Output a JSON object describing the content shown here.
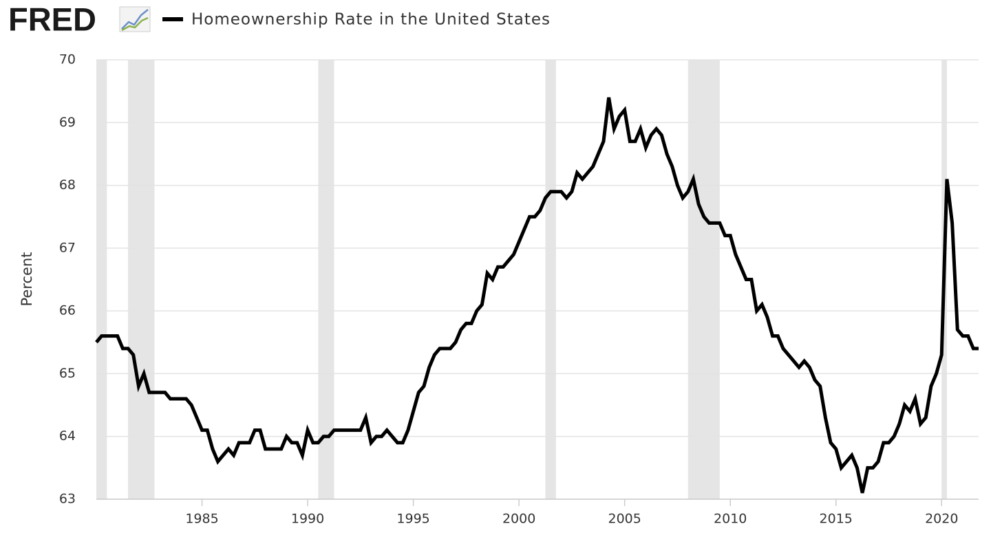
{
  "chart_data": {
    "type": "line",
    "logo": "FRED",
    "title": "Homeownership Rate in the United States",
    "ylabel": "Percent",
    "xlim": [
      1980,
      2021.75
    ],
    "ylim": [
      63,
      70
    ],
    "xticks": [
      1985,
      1990,
      1995,
      2000,
      2005,
      2010,
      2015,
      2020
    ],
    "yticks": [
      63,
      64,
      65,
      66,
      67,
      68,
      69,
      70
    ],
    "grid": true,
    "recession_color": "#e5e5e5",
    "recessions": [
      [
        1980,
        1980.5
      ],
      [
        1981.5,
        1982.75
      ],
      [
        1990.5,
        1991.25
      ],
      [
        2001.25,
        2001.75
      ],
      [
        2008,
        2009.5
      ],
      [
        2020,
        2020.25
      ]
    ],
    "x": [
      1980,
      1980.25,
      1980.5,
      1980.75,
      1981,
      1981.25,
      1981.5,
      1981.75,
      1982,
      1982.25,
      1982.5,
      1982.75,
      1983,
      1983.25,
      1983.5,
      1983.75,
      1984,
      1984.25,
      1984.5,
      1984.75,
      1985,
      1985.25,
      1985.5,
      1985.75,
      1986,
      1986.25,
      1986.5,
      1986.75,
      1987,
      1987.25,
      1987.5,
      1987.75,
      1988,
      1988.25,
      1988.5,
      1988.75,
      1989,
      1989.25,
      1989.5,
      1989.75,
      1990,
      1990.25,
      1990.5,
      1990.75,
      1991,
      1991.25,
      1991.5,
      1991.75,
      1992,
      1992.25,
      1992.5,
      1992.75,
      1993,
      1993.25,
      1993.5,
      1993.75,
      1994,
      1994.25,
      1994.5,
      1994.75,
      1995,
      1995.25,
      1995.5,
      1995.75,
      1996,
      1996.25,
      1996.5,
      1996.75,
      1997,
      1997.25,
      1997.5,
      1997.75,
      1998,
      1998.25,
      1998.5,
      1998.75,
      1999,
      1999.25,
      1999.5,
      1999.75,
      2000,
      2000.25,
      2000.5,
      2000.75,
      2001,
      2001.25,
      2001.5,
      2001.75,
      2002,
      2002.25,
      2002.5,
      2002.75,
      2003,
      2003.25,
      2003.5,
      2003.75,
      2004,
      2004.25,
      2004.5,
      2004.75,
      2005,
      2005.25,
      2005.5,
      2005.75,
      2006,
      2006.25,
      2006.5,
      2006.75,
      2007,
      2007.25,
      2007.5,
      2007.75,
      2008,
      2008.25,
      2008.5,
      2008.75,
      2009,
      2009.25,
      2009.5,
      2009.75,
      2010,
      2010.25,
      2010.5,
      2010.75,
      2011,
      2011.25,
      2011.5,
      2011.75,
      2012,
      2012.25,
      2012.5,
      2012.75,
      2013,
      2013.25,
      2013.5,
      2013.75,
      2014,
      2014.25,
      2014.5,
      2014.75,
      2015,
      2015.25,
      2015.5,
      2015.75,
      2016,
      2016.25,
      2016.5,
      2016.75,
      2017,
      2017.25,
      2017.5,
      2017.75,
      2018,
      2018.25,
      2018.5,
      2018.75,
      2019,
      2019.25,
      2019.5,
      2019.75,
      2020,
      2020.25,
      2020.5,
      2020.75,
      2021,
      2021.25,
      2021.5,
      2021.75
    ],
    "series": [
      {
        "name": "Homeownership Rate in the United States",
        "color": "#000000",
        "values": [
          65.5,
          65.6,
          65.6,
          65.6,
          65.6,
          65.4,
          65.4,
          65.3,
          64.8,
          65.0,
          64.7,
          64.7,
          64.7,
          64.7,
          64.6,
          64.6,
          64.6,
          64.6,
          64.5,
          64.3,
          64.1,
          64.1,
          63.8,
          63.6,
          63.7,
          63.8,
          63.7,
          63.9,
          63.9,
          63.9,
          64.1,
          64.1,
          63.8,
          63.8,
          63.8,
          63.8,
          64.0,
          63.9,
          63.9,
          63.7,
          64.1,
          63.9,
          63.9,
          64.0,
          64.0,
          64.1,
          64.1,
          64.1,
          64.1,
          64.1,
          64.1,
          64.3,
          63.9,
          64.0,
          64.0,
          64.1,
          64.0,
          63.9,
          63.9,
          64.1,
          64.4,
          64.7,
          64.8,
          65.1,
          65.3,
          65.4,
          65.4,
          65.4,
          65.5,
          65.7,
          65.8,
          65.8,
          66.0,
          66.1,
          66.6,
          66.5,
          66.7,
          66.7,
          66.8,
          66.9,
          67.1,
          67.3,
          67.5,
          67.5,
          67.6,
          67.8,
          67.9,
          67.9,
          67.9,
          67.8,
          67.9,
          68.2,
          68.1,
          68.2,
          68.3,
          68.5,
          68.7,
          69.4,
          68.9,
          69.1,
          69.2,
          68.7,
          68.7,
          68.9,
          68.6,
          68.8,
          68.9,
          68.8,
          68.5,
          68.3,
          68.0,
          67.8,
          67.9,
          68.1,
          67.7,
          67.5,
          67.4,
          67.4,
          67.4,
          67.2,
          67.2,
          66.9,
          66.7,
          66.5,
          66.5,
          66.0,
          66.1,
          65.9,
          65.6,
          65.6,
          65.4,
          65.3,
          65.2,
          65.1,
          65.2,
          65.1,
          64.9,
          64.8,
          64.3,
          63.9,
          63.8,
          63.5,
          63.6,
          63.7,
          63.5,
          63.1,
          63.5,
          63.5,
          63.6,
          63.9,
          63.9,
          64.0,
          64.2,
          64.5,
          64.4,
          64.6,
          64.2,
          64.3,
          64.8,
          65.0,
          65.3,
          68.1,
          67.4,
          65.7,
          65.6,
          65.6,
          65.4,
          65.4
        ]
      }
    ]
  }
}
